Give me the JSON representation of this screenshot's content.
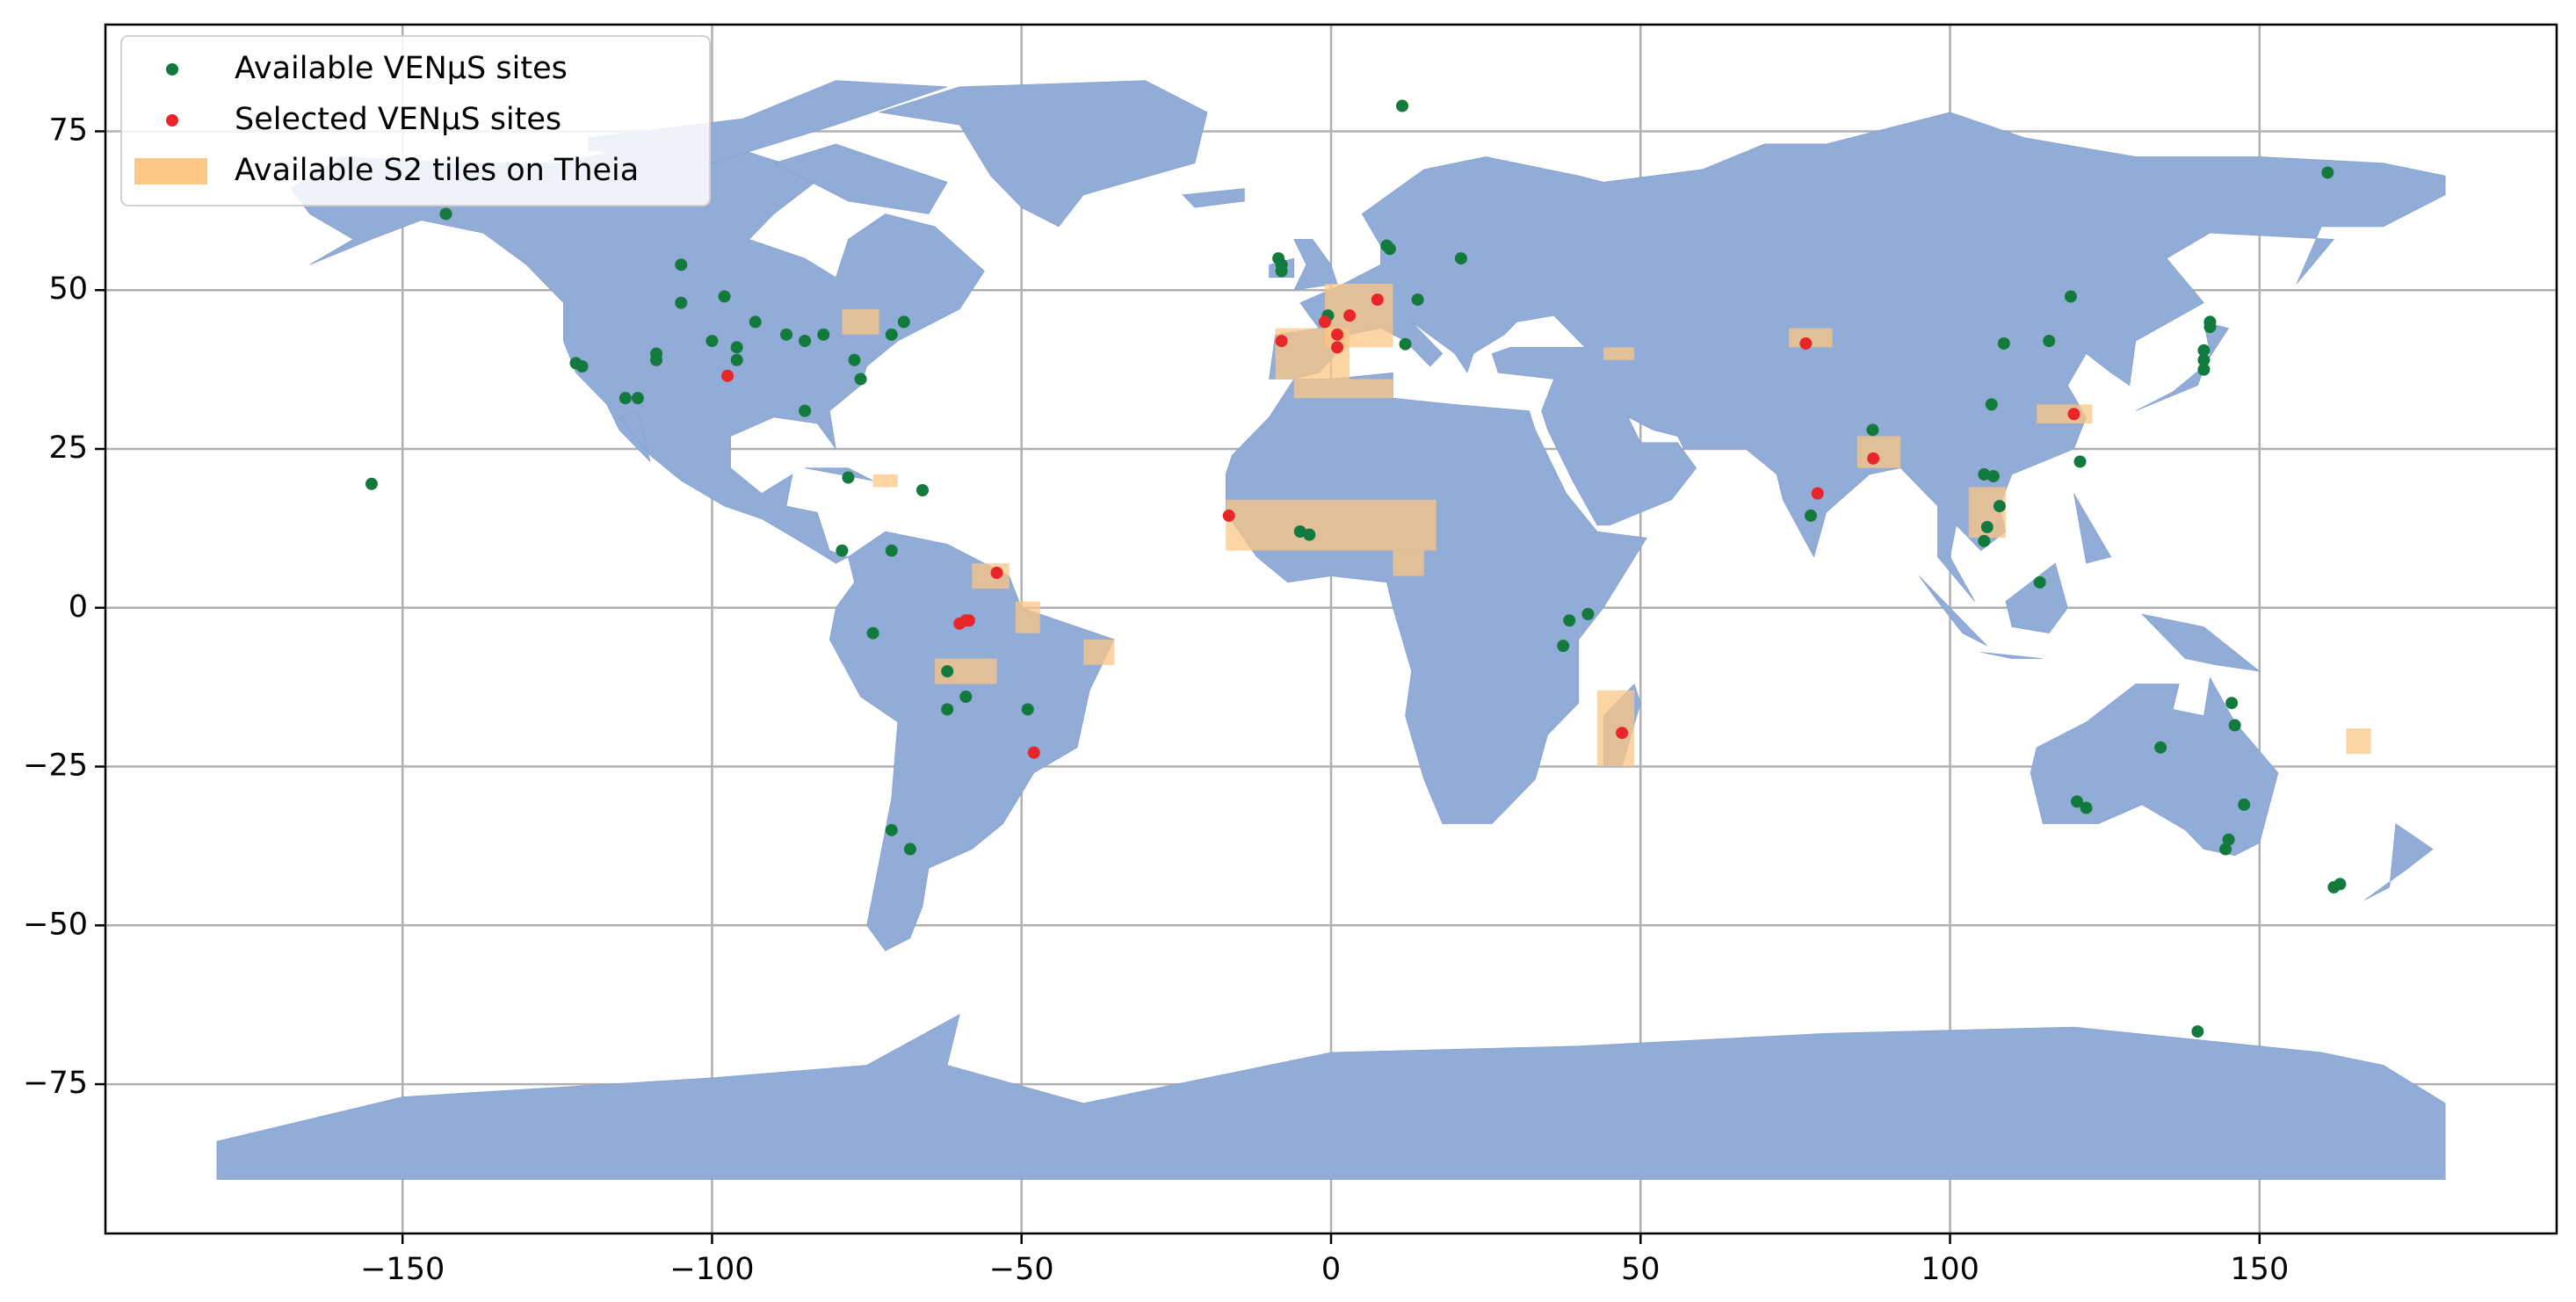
{
  "chart_data": {
    "type": "scatter",
    "xlim": [
      -198,
      198
    ],
    "ylim": [
      -98.5,
      91.8
    ],
    "xticks": [
      {
        "value": -150,
        "label": "−150"
      },
      {
        "value": -100,
        "label": "−100"
      },
      {
        "value": -50,
        "label": "−50"
      },
      0,
      50,
      100,
      150
    ],
    "yticks": [
      {
        "value": -75,
        "label": "−75"
      },
      {
        "value": -50,
        "label": "−50"
      },
      {
        "value": -25,
        "label": "−25"
      },
      0,
      25,
      50,
      75
    ],
    "grid": true,
    "legend": "upper left",
    "series": [
      {
        "name": "Available VENμS sites",
        "color": "#127a3c",
        "x": [
          -143,
          -105,
          -105,
          -98,
          -100,
          -96,
          -96,
          -93,
          -88,
          -85,
          -82,
          -77,
          -76,
          -71,
          -69,
          -85,
          -109,
          -109,
          -122,
          -121,
          -114,
          -112,
          -155,
          -78,
          -66,
          -79,
          -71,
          -74,
          -62,
          -59,
          -62,
          -49,
          -71,
          -68,
          11.5,
          -8,
          -8,
          -8.5,
          9.5,
          9,
          21,
          14,
          12,
          -0.5,
          -5,
          -3.5,
          37.5,
          38.5,
          41.5,
          87.5,
          77.5,
          105.5,
          107,
          108,
          106,
          105.5,
          114.5,
          106.7,
          108.7,
          116,
          119.5,
          121,
          141,
          141,
          141,
          142,
          142,
          161,
          134,
          145.5,
          146,
          147.5,
          120.5,
          122,
          145,
          144.5,
          162,
          163,
          140
        ],
        "y": [
          62,
          54,
          48,
          49,
          42,
          41,
          39,
          45,
          43,
          42,
          43,
          39,
          36,
          43,
          45,
          31,
          40,
          39,
          38.5,
          38,
          33,
          33,
          19.5,
          20.5,
          18.5,
          9,
          9,
          -4,
          -10,
          -14,
          -16,
          -16,
          -35,
          -38,
          79,
          54,
          53,
          55,
          56.5,
          57,
          55,
          48.5,
          41.5,
          46,
          12,
          11.5,
          -6,
          -2,
          -1,
          28,
          14.5,
          21,
          20.7,
          16,
          12.7,
          10.5,
          4,
          32,
          41.6,
          42,
          49,
          23,
          40.5,
          39,
          37.5,
          45,
          44.2,
          68.5,
          -22,
          -15,
          -18.5,
          -31,
          -30.5,
          -31.5,
          -36.5,
          -38,
          -44,
          -43.5,
          -66.7
        ]
      },
      {
        "name": "Selected VENμS sites",
        "color": "#e8262a",
        "x": [
          -97.5,
          -8,
          -1,
          1,
          1,
          7.5,
          3,
          76.7,
          87.6,
          78.6,
          120,
          -16.5,
          -54,
          -60,
          -59,
          -58.5,
          -48,
          47
        ],
        "y": [
          36.5,
          42,
          45,
          43,
          41,
          48.5,
          46,
          41.6,
          23.5,
          18,
          30.5,
          14.5,
          5.5,
          -2.5,
          -2,
          -2,
          -22.8,
          -19.7
        ]
      }
    ],
    "regions": {
      "name": "Available S2 tiles on Theia",
      "color": "#fcc684"
    }
  }
}
